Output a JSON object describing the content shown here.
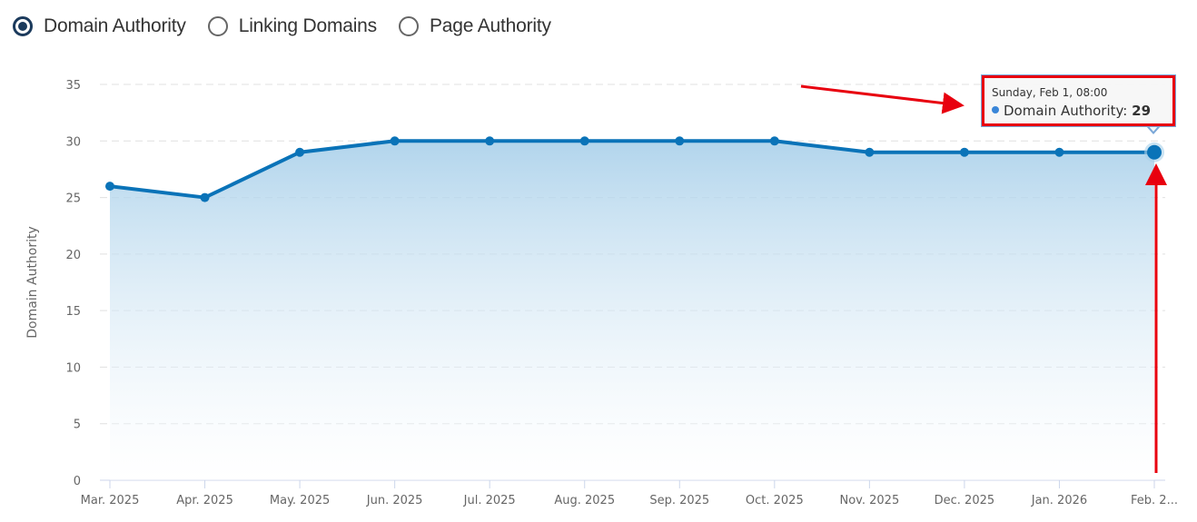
{
  "metric_selector": {
    "options": [
      {
        "label": "Domain Authority",
        "checked": true
      },
      {
        "label": "Linking Domains",
        "checked": false
      },
      {
        "label": "Page Authority",
        "checked": false
      }
    ]
  },
  "tooltip": {
    "date": "Sunday, Feb 1, 08:00",
    "series_label": "Domain Authority:",
    "value": "29"
  },
  "colors": {
    "line": "#0a73b8",
    "area_top": "#a9d0ea",
    "area_bottom": "#ffffff",
    "grid": "#dddddd",
    "annotation": "#e8000f",
    "radio_selected": "#1b3a5c"
  },
  "chart_data": {
    "type": "area",
    "title": "",
    "xlabel": "",
    "ylabel": "Domain Authority",
    "categories": [
      "Mar. 2025",
      "Apr. 2025",
      "May. 2025",
      "Jun. 2025",
      "Jul. 2025",
      "Aug. 2025",
      "Sep. 2025",
      "Oct. 2025",
      "Nov. 2025",
      "Dec. 2025",
      "Jan. 2026",
      "Feb. 2..."
    ],
    "series": [
      {
        "name": "Domain Authority",
        "values": [
          26,
          25,
          29,
          30,
          30,
          30,
          30,
          30,
          29,
          29,
          29,
          29
        ]
      }
    ],
    "ylim": [
      0,
      35
    ],
    "yticks": [
      0,
      5,
      10,
      15,
      20,
      25,
      30,
      35
    ],
    "grid": true,
    "legend": "radio selector top-left",
    "highlighted_point": {
      "category": "Feb. 2...",
      "value": 29
    }
  }
}
